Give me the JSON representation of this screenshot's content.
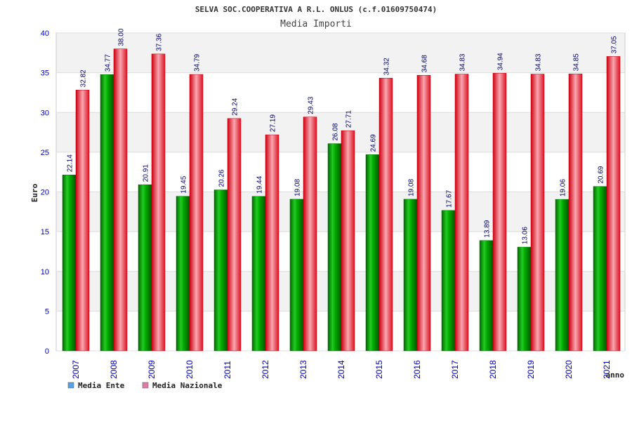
{
  "header": {
    "title": "SELVA SOC.COOPERATIVA A R.L. ONLUS (c.f.01609750474)",
    "subtitle": "Media Importi"
  },
  "chart_data": {
    "type": "bar",
    "title": "Media Importi",
    "xlabel": "anno",
    "ylabel": "Euro",
    "ylim": [
      0,
      40
    ],
    "yticks": [
      "0",
      "5",
      "10",
      "15",
      "20",
      "25",
      "30",
      "35",
      "40"
    ],
    "categories": [
      "2007",
      "2008",
      "2009",
      "2010",
      "2011",
      "2012",
      "2013",
      "2014",
      "2015",
      "2016",
      "2017",
      "2018",
      "2019",
      "2020",
      "2021"
    ],
    "series": [
      {
        "name": "Media Ente",
        "color": "#00a000",
        "legend_color": "#5aa0e6",
        "values": [
          22.14,
          34.77,
          20.91,
          19.45,
          20.26,
          19.44,
          19.08,
          26.08,
          24.69,
          19.08,
          17.67,
          13.89,
          13.06,
          19.06,
          20.69
        ]
      },
      {
        "name": "Media Nazionale",
        "color": "#e8152a",
        "legend_color": "#e07aa8",
        "values": [
          32.82,
          38.0,
          37.36,
          34.79,
          29.24,
          27.19,
          29.43,
          27.71,
          34.32,
          34.68,
          34.83,
          34.94,
          34.83,
          34.85,
          37.05
        ]
      }
    ],
    "data_labels": [
      [
        "22.14",
        "34.77",
        "20.91",
        "19.45",
        "20.26",
        "19.44",
        "19.08",
        "26.08",
        "24.69",
        "19.08",
        "17.67",
        "13.89",
        "13.06",
        "19.06",
        "20.69"
      ],
      [
        "32.82",
        "38.00",
        "37.36",
        "34.79",
        "29.24",
        "27.19",
        "29.43",
        "27.71",
        "34.32",
        "34.68",
        "34.83",
        "34.94",
        "34.83",
        "34.85",
        "37.05"
      ]
    ],
    "grid": true,
    "legend_position": "bottom-left"
  }
}
